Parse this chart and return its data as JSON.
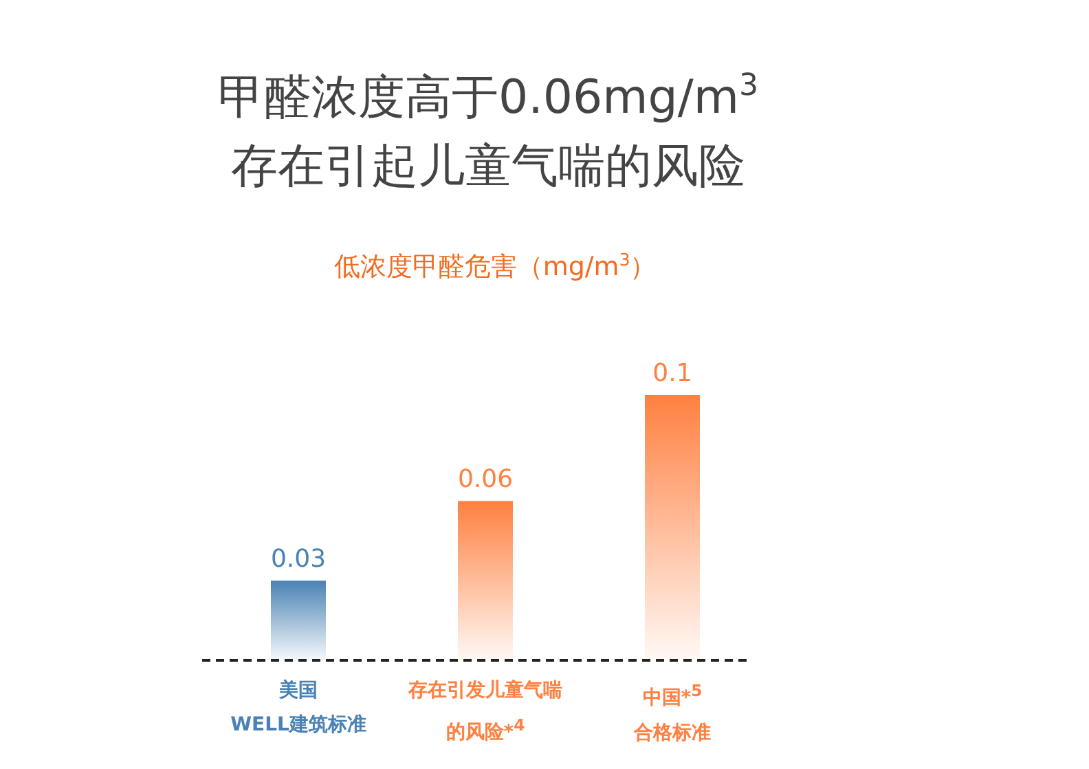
{
  "chart_data": {
    "type": "bar",
    "title": "甲醛浓度高于0.06mg/m$^{3}$\n存在引起儿童气喘的风险",
    "subtitle": "低浓度甲醛危害（mg/m$^{3}$）",
    "categories": [
      "美国\nWELL建筑标准",
      "存在引发儿童气喘的风险*$^{4}$",
      "中国*$^{5}$\n合格标准"
    ],
    "values": [
      0.03,
      0.06,
      0.1
    ],
    "colors": [
      "#4a82b4",
      "#ff8040",
      "#ff8040"
    ],
    "data_labels": true
  }
}
